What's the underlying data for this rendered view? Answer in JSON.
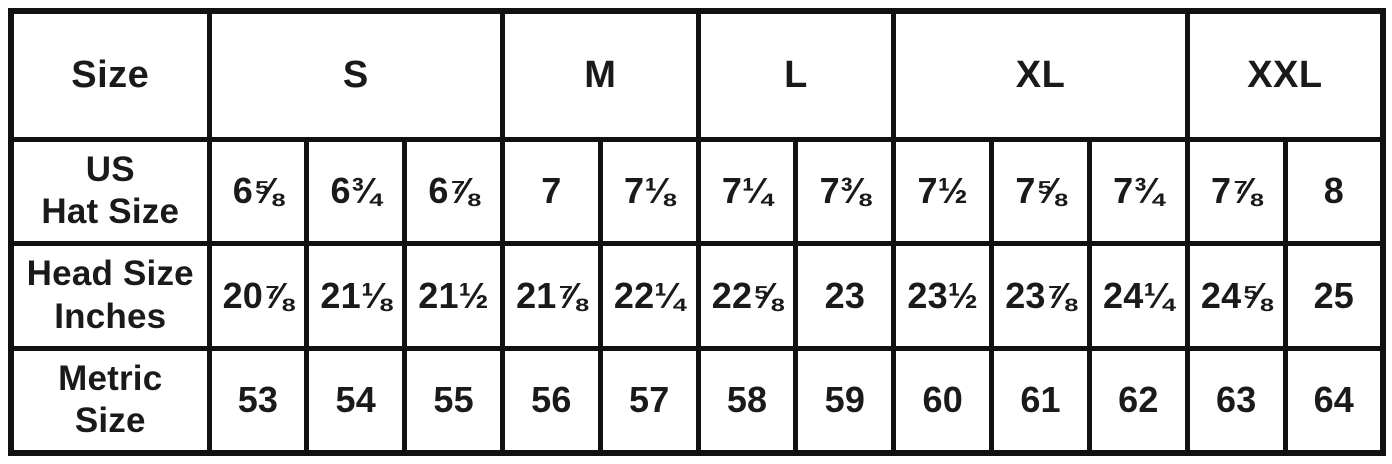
{
  "chart_data": {
    "type": "table",
    "corner_label": "Size",
    "size_groups": [
      {
        "label": "S",
        "span": 3
      },
      {
        "label": "M",
        "span": 2
      },
      {
        "label": "L",
        "span": 2
      },
      {
        "label": "XL",
        "span": 3
      },
      {
        "label": "XXL",
        "span": 2
      }
    ],
    "rows": [
      {
        "label_lines": [
          "US",
          "Hat Size"
        ],
        "values": [
          "6⅝",
          "6¾",
          "6⅞",
          "7",
          "7⅛",
          "7¼",
          "7⅜",
          "7½",
          "7⅝",
          "7¾",
          "7⅞",
          "8"
        ]
      },
      {
        "label_lines": [
          "Head Size",
          "Inches"
        ],
        "values": [
          "20⅞",
          "21⅛",
          "21½",
          "21⅞",
          "22¼",
          "22⅝",
          "23",
          "23½",
          "23⅞",
          "24¼",
          "24⅝",
          "25"
        ]
      },
      {
        "label_lines": [
          "Metric",
          "Size"
        ],
        "values": [
          "53",
          "54",
          "55",
          "56",
          "57",
          "58",
          "59",
          "60",
          "61",
          "62",
          "63",
          "64"
        ]
      }
    ],
    "colors": {
      "border": "#111111",
      "text": "#1a1a1a",
      "background": "#ffffff"
    }
  }
}
